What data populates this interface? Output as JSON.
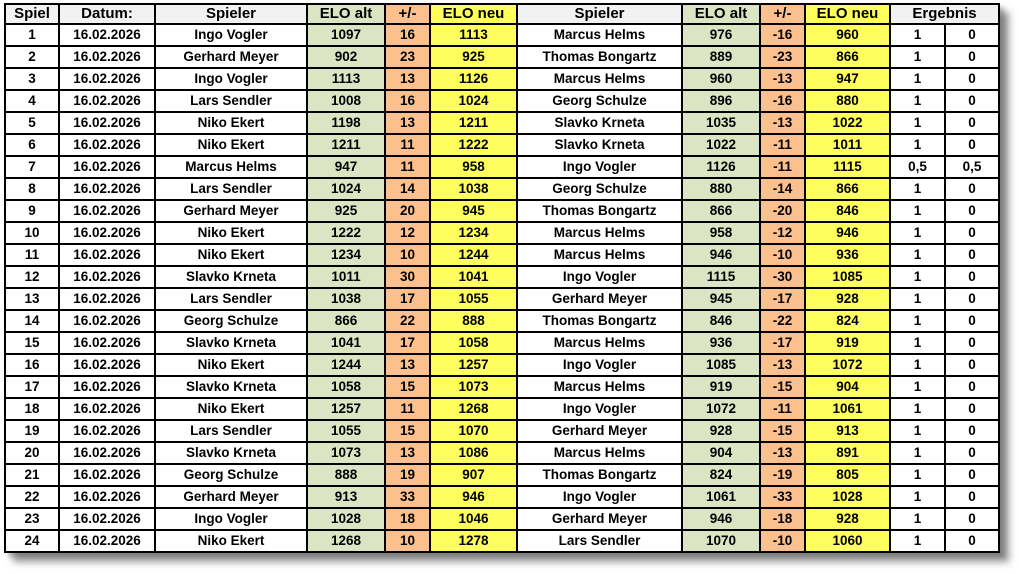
{
  "colors": {
    "header_bg": "#f2f2f2",
    "elo_alt_bg": "#dbe5c4",
    "plus_minus_bg": "#fbc08d",
    "elo_neu_bg": "#feff5e",
    "border": "#000000",
    "page_bg": "#ffffff"
  },
  "table": {
    "columns": [
      {
        "key": "spiel",
        "label": "Spiel",
        "bg": "gray"
      },
      {
        "key": "datum",
        "label": "Datum:",
        "bg": "gray"
      },
      {
        "key": "p1-name",
        "label": "Spieler",
        "bg": "gray"
      },
      {
        "key": "p1-elo-alt",
        "label": "ELO alt",
        "bg": "green"
      },
      {
        "key": "p1-diff",
        "label": "+/-",
        "bg": "orange"
      },
      {
        "key": "p1-elo-neu",
        "label": "ELO neu",
        "bg": "yellow"
      },
      {
        "key": "p2-name",
        "label": "Spieler",
        "bg": "gray"
      },
      {
        "key": "p2-elo-alt",
        "label": "ELO alt",
        "bg": "green"
      },
      {
        "key": "p2-diff",
        "label": "+/-",
        "bg": "orange"
      },
      {
        "key": "p2-elo-neu",
        "label": "ELO neu",
        "bg": "yellow"
      },
      {
        "key": "ergebnis",
        "label": "Ergebnis",
        "bg": "gray",
        "colspan": 2
      }
    ],
    "cell_keys": [
      "spiel",
      "datum",
      "p1-name",
      "p1-elo-alt",
      "p1-diff",
      "p1-elo-neu",
      "p2-name",
      "p2-elo-alt",
      "p2-diff",
      "p2-elo-neu",
      "ergebnis-1",
      "ergebnis-2"
    ],
    "cell_bg": [
      "white",
      "white",
      "white",
      "green",
      "orange",
      "yellow",
      "white",
      "green",
      "orange",
      "yellow",
      "white",
      "white"
    ],
    "rows": [
      [
        "1",
        "16.02.2026",
        "Ingo Vogler",
        "1097",
        "16",
        "1113",
        "Marcus Helms",
        "976",
        "-16",
        "960",
        "1",
        "0"
      ],
      [
        "2",
        "16.02.2026",
        "Gerhard Meyer",
        "902",
        "23",
        "925",
        "Thomas Bongartz",
        "889",
        "-23",
        "866",
        "1",
        "0"
      ],
      [
        "3",
        "16.02.2026",
        "Ingo Vogler",
        "1113",
        "13",
        "1126",
        "Marcus Helms",
        "960",
        "-13",
        "947",
        "1",
        "0"
      ],
      [
        "4",
        "16.02.2026",
        "Lars Sendler",
        "1008",
        "16",
        "1024",
        "Georg Schulze",
        "896",
        "-16",
        "880",
        "1",
        "0"
      ],
      [
        "5",
        "16.02.2026",
        "Niko Ekert",
        "1198",
        "13",
        "1211",
        "Slavko Krneta",
        "1035",
        "-13",
        "1022",
        "1",
        "0"
      ],
      [
        "6",
        "16.02.2026",
        "Niko Ekert",
        "1211",
        "11",
        "1222",
        "Slavko Krneta",
        "1022",
        "-11",
        "1011",
        "1",
        "0"
      ],
      [
        "7",
        "16.02.2026",
        "Marcus Helms",
        "947",
        "11",
        "958",
        "Ingo Vogler",
        "1126",
        "-11",
        "1115",
        "0,5",
        "0,5"
      ],
      [
        "8",
        "16.02.2026",
        "Lars Sendler",
        "1024",
        "14",
        "1038",
        "Georg Schulze",
        "880",
        "-14",
        "866",
        "1",
        "0"
      ],
      [
        "9",
        "16.02.2026",
        "Gerhard Meyer",
        "925",
        "20",
        "945",
        "Thomas Bongartz",
        "866",
        "-20",
        "846",
        "1",
        "0"
      ],
      [
        "10",
        "16.02.2026",
        "Niko Ekert",
        "1222",
        "12",
        "1234",
        "Marcus Helms",
        "958",
        "-12",
        "946",
        "1",
        "0"
      ],
      [
        "11",
        "16.02.2026",
        "Niko Ekert",
        "1234",
        "10",
        "1244",
        "Marcus Helms",
        "946",
        "-10",
        "936",
        "1",
        "0"
      ],
      [
        "12",
        "16.02.2026",
        "Slavko Krneta",
        "1011",
        "30",
        "1041",
        "Ingo Vogler",
        "1115",
        "-30",
        "1085",
        "1",
        "0"
      ],
      [
        "13",
        "16.02.2026",
        "Lars Sendler",
        "1038",
        "17",
        "1055",
        "Gerhard Meyer",
        "945",
        "-17",
        "928",
        "1",
        "0"
      ],
      [
        "14",
        "16.02.2026",
        "Georg Schulze",
        "866",
        "22",
        "888",
        "Thomas Bongartz",
        "846",
        "-22",
        "824",
        "1",
        "0"
      ],
      [
        "15",
        "16.02.2026",
        "Slavko Krneta",
        "1041",
        "17",
        "1058",
        "Marcus Helms",
        "936",
        "-17",
        "919",
        "1",
        "0"
      ],
      [
        "16",
        "16.02.2026",
        "Niko Ekert",
        "1244",
        "13",
        "1257",
        "Ingo Vogler",
        "1085",
        "-13",
        "1072",
        "1",
        "0"
      ],
      [
        "17",
        "16.02.2026",
        "Slavko Krneta",
        "1058",
        "15",
        "1073",
        "Marcus Helms",
        "919",
        "-15",
        "904",
        "1",
        "0"
      ],
      [
        "18",
        "16.02.2026",
        "Niko Ekert",
        "1257",
        "11",
        "1268",
        "Ingo Vogler",
        "1072",
        "-11",
        "1061",
        "1",
        "0"
      ],
      [
        "19",
        "16.02.2026",
        "Lars Sendler",
        "1055",
        "15",
        "1070",
        "Gerhard Meyer",
        "928",
        "-15",
        "913",
        "1",
        "0"
      ],
      [
        "20",
        "16.02.2026",
        "Slavko Krneta",
        "1073",
        "13",
        "1086",
        "Marcus Helms",
        "904",
        "-13",
        "891",
        "1",
        "0"
      ],
      [
        "21",
        "16.02.2026",
        "Georg Schulze",
        "888",
        "19",
        "907",
        "Thomas Bongartz",
        "824",
        "-19",
        "805",
        "1",
        "0"
      ],
      [
        "22",
        "16.02.2026",
        "Gerhard Meyer",
        "913",
        "33",
        "946",
        "Ingo Vogler",
        "1061",
        "-33",
        "1028",
        "1",
        "0"
      ],
      [
        "23",
        "16.02.2026",
        "Ingo Vogler",
        "1028",
        "18",
        "1046",
        "Gerhard Meyer",
        "946",
        "-18",
        "928",
        "1",
        "0"
      ],
      [
        "24",
        "16.02.2026",
        "Niko Ekert",
        "1268",
        "10",
        "1278",
        "Lars Sendler",
        "1070",
        "-10",
        "1060",
        "1",
        "0"
      ]
    ]
  }
}
